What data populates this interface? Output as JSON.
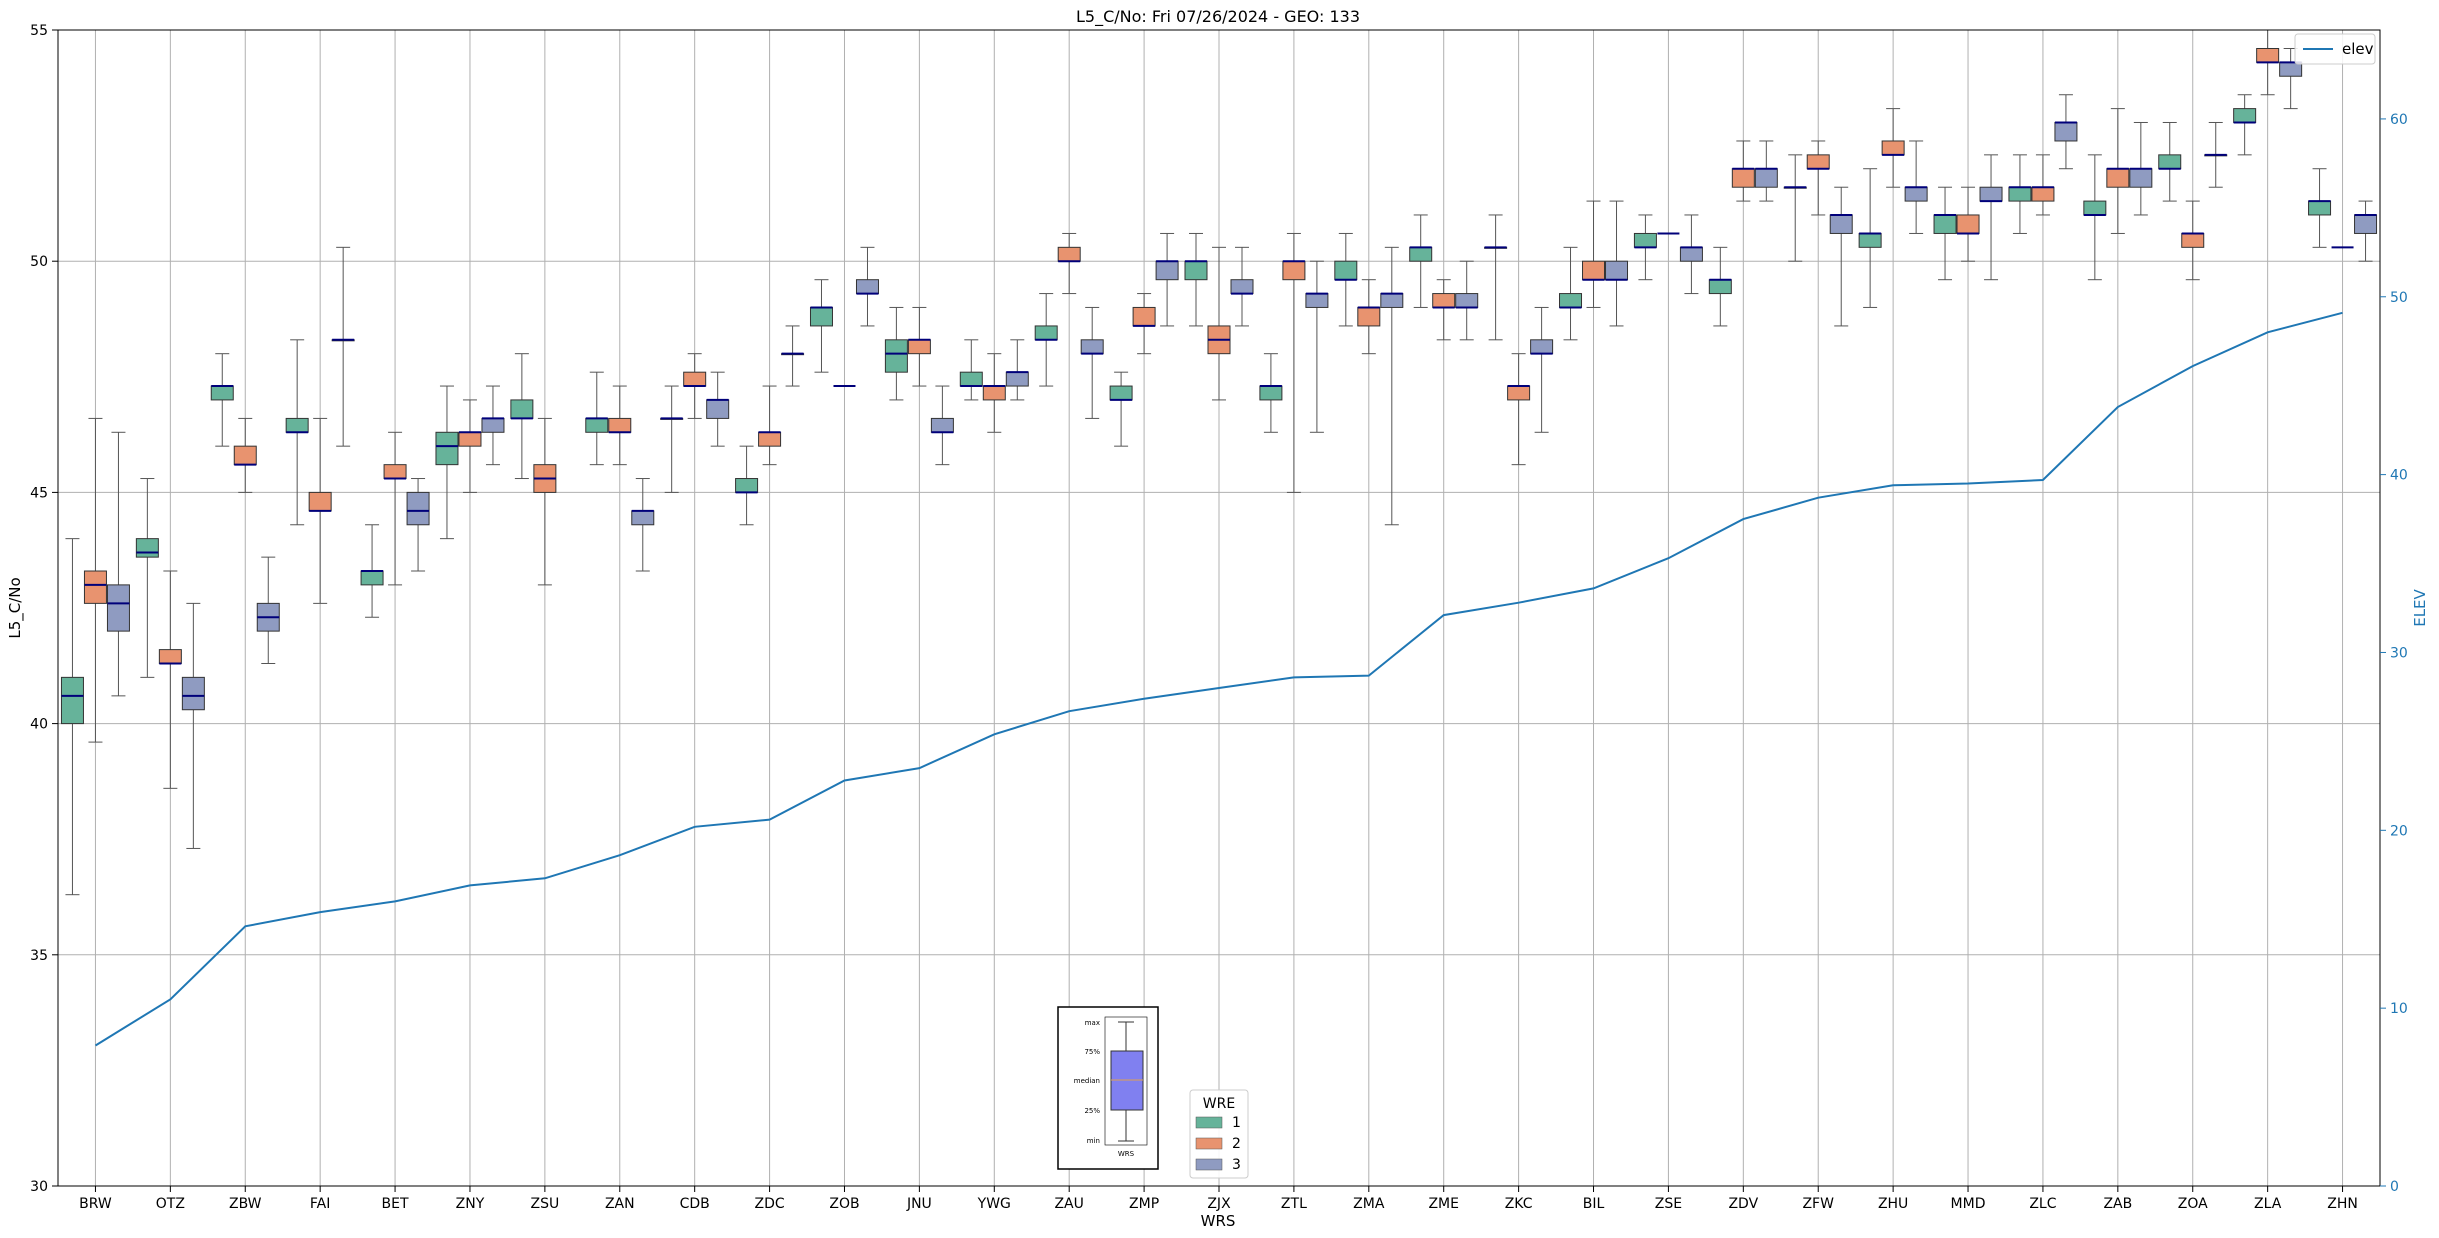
{
  "chart_data": {
    "type": "box",
    "title": "L5_C/No: Fri 07/26/2024 - GEO: 133",
    "xlabel": "WRS",
    "ylabel": "L5_C/No",
    "y2label": "ELEV",
    "ylim": [
      30,
      55
    ],
    "y2lim": [
      0,
      65
    ],
    "yticks": [
      30,
      35,
      40,
      45,
      50,
      55
    ],
    "y2ticks": [
      0,
      10,
      20,
      30,
      40,
      50,
      60
    ],
    "grid": true,
    "categories": [
      "BRW",
      "OTZ",
      "ZBW",
      "FAI",
      "BET",
      "ZNY",
      "ZSU",
      "ZAN",
      "CDB",
      "ZDC",
      "ZOB",
      "JNU",
      "YWG",
      "ZAU",
      "ZMP",
      "ZJX",
      "ZTL",
      "ZMA",
      "ZME",
      "ZKC",
      "BIL",
      "ZSE",
      "ZDV",
      "ZFW",
      "ZHU",
      "MMD",
      "ZLC",
      "ZAB",
      "ZOA",
      "ZLA",
      "ZHN"
    ],
    "legend": {
      "title": "WRE",
      "placement": "bottom-center",
      "entries": [
        {
          "label": "1",
          "color": "#66b39a"
        },
        {
          "label": "2",
          "color": "#e8936f"
        },
        {
          "label": "3",
          "color": "#8f9bc1"
        }
      ]
    },
    "line_legend": {
      "label": "elev",
      "placement": "top-right",
      "color": "#1f77b4"
    },
    "box_key": {
      "placement": "bottom-center",
      "labels": [
        "max",
        "75%",
        "median",
        "25%",
        "min"
      ],
      "caption": "WRS",
      "fill": "#8080f0"
    },
    "series": [
      {
        "name": "1",
        "color": "#66b39a",
        "boxes": [
          [
            36.3,
            40.0,
            40.6,
            41.0,
            44.0
          ],
          [
            41.0,
            43.6,
            43.7,
            44.0,
            45.3
          ],
          [
            46.0,
            47.0,
            47.3,
            47.3,
            48.0
          ],
          [
            44.3,
            46.3,
            46.3,
            46.6,
            48.3
          ],
          [
            42.3,
            43.0,
            43.3,
            43.3,
            44.3
          ],
          [
            44.0,
            45.6,
            46.0,
            46.3,
            47.3
          ],
          [
            45.3,
            46.6,
            46.6,
            47.0,
            48.0
          ],
          [
            45.6,
            46.3,
            46.6,
            46.6,
            47.6
          ],
          [
            45.0,
            46.6,
            46.6,
            46.6,
            47.3
          ],
          [
            44.3,
            45.0,
            45.0,
            45.3,
            46.0
          ],
          [
            47.6,
            48.6,
            49.0,
            49.0,
            49.6
          ],
          [
            47.0,
            47.6,
            48.0,
            48.3,
            49.0
          ],
          [
            47.0,
            47.3,
            47.3,
            47.6,
            48.3
          ],
          [
            47.3,
            48.3,
            48.3,
            48.6,
            49.3
          ],
          [
            46.0,
            47.0,
            47.0,
            47.3,
            47.6
          ],
          [
            48.6,
            49.6,
            50.0,
            50.0,
            50.6
          ],
          [
            46.3,
            47.0,
            47.3,
            47.3,
            48.0
          ],
          [
            48.6,
            49.6,
            49.6,
            50.0,
            50.6
          ],
          [
            49.0,
            50.0,
            50.3,
            50.3,
            51.0
          ],
          [
            48.3,
            50.3,
            50.3,
            50.3,
            51.0
          ],
          [
            48.3,
            49.0,
            49.0,
            49.3,
            50.3
          ],
          [
            49.6,
            50.3,
            50.3,
            50.6,
            51.0
          ],
          [
            48.6,
            49.3,
            49.6,
            49.6,
            50.3
          ],
          [
            50.0,
            51.6,
            51.6,
            51.6,
            52.3
          ],
          [
            49.0,
            50.3,
            50.6,
            50.6,
            52.0
          ],
          [
            49.6,
            50.6,
            51.0,
            51.0,
            51.6
          ],
          [
            50.6,
            51.3,
            51.6,
            51.6,
            52.3
          ],
          [
            49.6,
            51.0,
            51.0,
            51.3,
            52.3
          ],
          [
            51.3,
            52.0,
            52.0,
            52.3,
            53.0
          ],
          [
            52.3,
            53.0,
            53.0,
            53.3,
            53.6
          ],
          [
            50.3,
            51.0,
            51.3,
            51.3,
            52.0
          ]
        ]
      },
      {
        "name": "2",
        "color": "#e8936f",
        "boxes": [
          [
            39.6,
            42.6,
            43.0,
            43.3,
            46.6
          ],
          [
            38.6,
            41.3,
            41.3,
            41.6,
            43.3
          ],
          [
            45.0,
            45.6,
            45.6,
            46.0,
            46.6
          ],
          [
            42.6,
            44.6,
            44.6,
            45.0,
            46.6
          ],
          [
            43.0,
            45.3,
            45.3,
            45.6,
            46.3
          ],
          [
            45.0,
            46.0,
            46.3,
            46.3,
            47.0
          ],
          [
            43.0,
            45.0,
            45.3,
            45.6,
            46.6
          ],
          [
            45.6,
            46.3,
            46.3,
            46.6,
            47.3
          ],
          [
            46.6,
            47.3,
            47.3,
            47.6,
            48.0
          ],
          [
            45.6,
            46.0,
            46.3,
            46.3,
            47.3
          ],
          [
            null,
            null,
            47.3,
            null,
            null
          ],
          [
            47.3,
            48.0,
            48.3,
            48.3,
            49.0
          ],
          [
            46.3,
            47.0,
            47.3,
            47.3,
            48.0
          ],
          [
            49.3,
            50.0,
            50.0,
            50.3,
            50.6
          ],
          [
            48.0,
            48.6,
            48.6,
            49.0,
            49.3
          ],
          [
            47.0,
            48.0,
            48.3,
            48.6,
            50.3
          ],
          [
            45.0,
            49.6,
            50.0,
            50.0,
            50.6
          ],
          [
            48.0,
            48.6,
            49.0,
            49.0,
            49.6
          ],
          [
            48.3,
            49.0,
            49.0,
            49.3,
            49.6
          ],
          [
            45.6,
            47.0,
            47.3,
            47.3,
            48.0
          ],
          [
            49.0,
            49.6,
            49.6,
            50.0,
            51.3
          ],
          [
            null,
            null,
            50.6,
            null,
            null
          ],
          [
            51.3,
            51.6,
            52.0,
            52.0,
            52.6
          ],
          [
            51.0,
            52.0,
            52.0,
            52.3,
            52.6
          ],
          [
            51.6,
            52.3,
            52.3,
            52.6,
            53.3
          ],
          [
            50.0,
            50.6,
            50.6,
            51.0,
            51.6
          ],
          [
            51.0,
            51.3,
            51.6,
            51.6,
            52.3
          ],
          [
            50.6,
            51.6,
            52.0,
            52.0,
            53.3
          ],
          [
            49.6,
            50.3,
            50.6,
            50.6,
            51.3
          ],
          [
            53.6,
            54.3,
            54.3,
            54.6,
            55.0
          ],
          [
            null,
            null,
            50.3,
            null,
            null
          ]
        ]
      },
      {
        "name": "3",
        "color": "#8f9bc1",
        "boxes": [
          [
            40.6,
            42.0,
            42.6,
            43.0,
            46.3
          ],
          [
            37.3,
            40.3,
            40.6,
            41.0,
            42.6
          ],
          [
            41.3,
            42.0,
            42.3,
            42.6,
            43.6
          ],
          [
            46.0,
            48.3,
            48.3,
            48.3,
            50.3
          ],
          [
            43.3,
            44.3,
            44.6,
            45.0,
            45.3
          ],
          [
            45.6,
            46.3,
            46.6,
            46.6,
            47.3
          ],
          [
            null,
            null,
            null,
            null,
            null
          ],
          [
            43.3,
            44.3,
            44.6,
            44.6,
            45.3
          ],
          [
            46.0,
            46.6,
            47.0,
            47.0,
            47.6
          ],
          [
            47.3,
            48.0,
            48.0,
            48.0,
            48.6
          ],
          [
            48.6,
            49.3,
            49.3,
            49.6,
            50.3
          ],
          [
            45.6,
            46.3,
            46.3,
            46.6,
            47.3
          ],
          [
            47.0,
            47.3,
            47.6,
            47.6,
            48.3
          ],
          [
            46.6,
            48.0,
            48.0,
            48.3,
            49.0
          ],
          [
            48.6,
            49.6,
            50.0,
            50.0,
            50.6
          ],
          [
            48.6,
            49.3,
            49.3,
            49.6,
            50.3
          ],
          [
            46.3,
            49.0,
            49.3,
            49.3,
            50.0
          ],
          [
            44.3,
            49.0,
            49.3,
            49.3,
            50.3
          ],
          [
            48.3,
            49.0,
            49.0,
            49.3,
            50.0
          ],
          [
            46.3,
            48.0,
            48.0,
            48.3,
            49.0
          ],
          [
            48.6,
            49.6,
            49.6,
            50.0,
            51.3
          ],
          [
            49.3,
            50.0,
            50.3,
            50.3,
            51.0
          ],
          [
            51.3,
            51.6,
            52.0,
            52.0,
            52.6
          ],
          [
            48.6,
            50.6,
            51.0,
            51.0,
            51.6
          ],
          [
            50.6,
            51.3,
            51.6,
            51.6,
            52.6
          ],
          [
            49.6,
            51.3,
            51.3,
            51.6,
            52.3
          ],
          [
            52.0,
            52.6,
            53.0,
            53.0,
            53.6
          ],
          [
            51.0,
            51.6,
            52.0,
            52.0,
            53.0
          ],
          [
            51.6,
            52.3,
            52.3,
            52.3,
            53.0
          ],
          [
            53.3,
            54.0,
            54.3,
            54.3,
            54.6
          ],
          [
            50.0,
            50.6,
            51.0,
            51.0,
            51.3
          ]
        ]
      }
    ],
    "elev_series": {
      "name": "elev",
      "axis": "right",
      "values": [
        7.9,
        10.5,
        14.6,
        15.4,
        16.0,
        16.9,
        17.3,
        18.6,
        20.2,
        20.6,
        22.8,
        23.5,
        25.4,
        26.7,
        27.4,
        28.0,
        28.6,
        28.7,
        32.1,
        32.8,
        33.6,
        35.3,
        37.5,
        38.7,
        39.4,
        39.5,
        39.7,
        43.8,
        46.1,
        48.0,
        49.1
      ]
    }
  }
}
